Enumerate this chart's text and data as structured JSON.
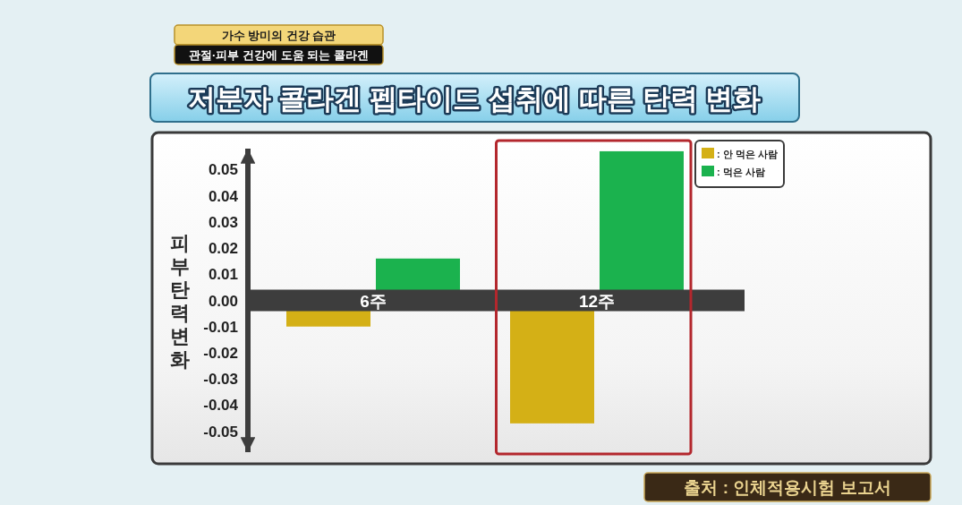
{
  "chart_data": {
    "type": "bar",
    "title": "저분자 콜라겐 펩타이드 섭취에 따른 탄력 변화",
    "ylabel": "피부탄력변화",
    "categories": [
      "6주",
      "12주"
    ],
    "series": [
      {
        "name": ": 안 먹은 사람",
        "color": "#d4b016",
        "values": [
          -0.01,
          -0.047
        ]
      },
      {
        "name": ": 먹은 사람",
        "color": "#1bb24e",
        "values": [
          0.016,
          0.057
        ]
      }
    ],
    "ylim": [
      -0.058,
      0.058
    ],
    "yticks": [
      0.05,
      0.04,
      0.03,
      0.02,
      0.01,
      {
        "value": 0,
        "label": "0.00"
      },
      -0.01,
      -0.02,
      -0.03,
      -0.04,
      -0.05
    ],
    "legend": "top right",
    "annotations": [
      "가수 방미의 건강 습관",
      "관절·피부 건강에 도움 되는 콜라겐",
      "출처 : 인체적용시험 보고서"
    ]
  }
}
